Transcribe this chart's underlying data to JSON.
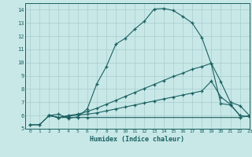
{
  "xlabel": "Humidex (Indice chaleur)",
  "bg_color": "#c8e8e8",
  "line_color": "#1a6060",
  "grid_color": "#a8cccc",
  "xlim": [
    -0.5,
    23
  ],
  "ylim": [
    5,
    14.5
  ],
  "xticks": [
    0,
    1,
    2,
    3,
    4,
    5,
    6,
    7,
    8,
    9,
    10,
    11,
    12,
    13,
    14,
    15,
    16,
    17,
    18,
    19,
    20,
    21,
    22,
    23
  ],
  "yticks": [
    5,
    6,
    7,
    8,
    9,
    10,
    11,
    12,
    13,
    14
  ],
  "line1_x": [
    0,
    1,
    2,
    3,
    4,
    5,
    6,
    7,
    8,
    9,
    10,
    11,
    12,
    13,
    14,
    15,
    16,
    17,
    18,
    19,
    20,
    21,
    22
  ],
  "line1_y": [
    5.3,
    5.3,
    6.0,
    6.1,
    5.8,
    5.9,
    6.5,
    8.4,
    9.7,
    11.4,
    11.85,
    12.55,
    13.15,
    14.05,
    14.1,
    13.95,
    13.5,
    13.0,
    11.9,
    9.9,
    6.9,
    6.8,
    6.0
  ],
  "line2_x": [
    2,
    3,
    4,
    5,
    6,
    7,
    8,
    9,
    10,
    11,
    12,
    13,
    14,
    15,
    16,
    17,
    18,
    19,
    20,
    21,
    22,
    23
  ],
  "line2_y": [
    6.0,
    5.85,
    6.0,
    6.1,
    6.3,
    6.55,
    6.85,
    7.15,
    7.45,
    7.75,
    8.05,
    8.35,
    8.65,
    8.95,
    9.2,
    9.5,
    9.7,
    9.95,
    8.55,
    7.0,
    6.75,
    6.0
  ],
  "line3_x": [
    2,
    3,
    4,
    5,
    6,
    7,
    8,
    9,
    10,
    11,
    12,
    13,
    14,
    15,
    16,
    17,
    18,
    19,
    20,
    21,
    22,
    23
  ],
  "line3_y": [
    6.0,
    5.85,
    5.95,
    6.05,
    6.1,
    6.2,
    6.35,
    6.5,
    6.65,
    6.8,
    6.95,
    7.1,
    7.25,
    7.4,
    7.55,
    7.7,
    7.85,
    8.6,
    7.4,
    6.85,
    6.0,
    5.9
  ],
  "line4_x": [
    0,
    1,
    2,
    3,
    4,
    5,
    6,
    22,
    23
  ],
  "line4_y": [
    5.3,
    5.3,
    6.0,
    5.85,
    5.85,
    5.85,
    5.85,
    5.85,
    6.0
  ]
}
